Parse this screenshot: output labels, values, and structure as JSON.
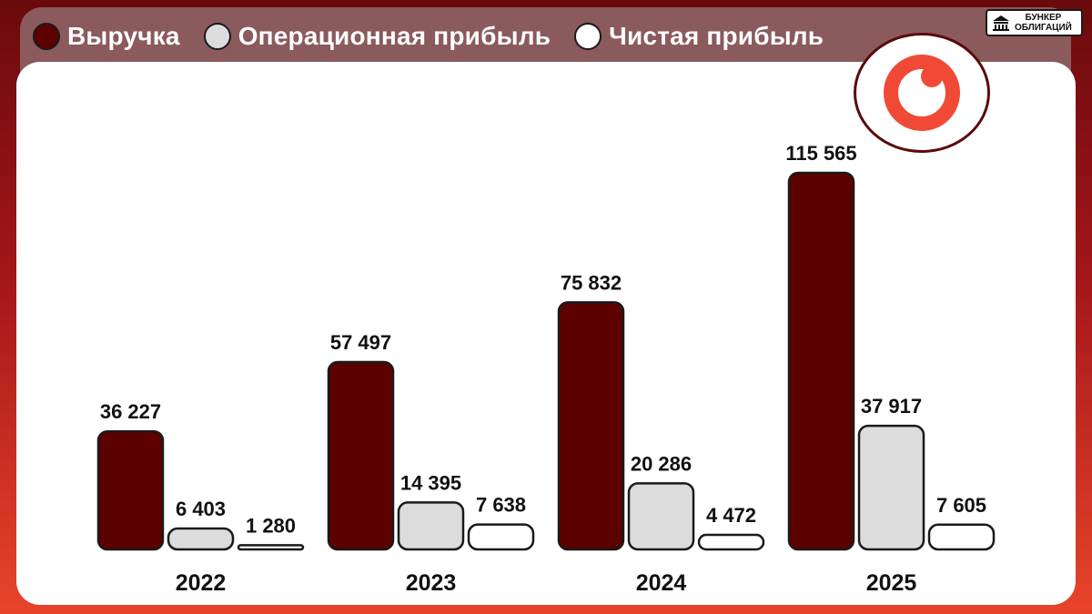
{
  "legend": {
    "items": [
      {
        "label": "Выручка",
        "color": "#5c0000"
      },
      {
        "label": "Операционная прибыль",
        "color": "#dcdcdc"
      },
      {
        "label": "Чистая прибыль",
        "color": "#ffffff"
      }
    ]
  },
  "brand": {
    "line1": "БУНКЕР",
    "line2": "ОБЛИГАЦИЙ",
    "icon": "building-icon"
  },
  "logo": {
    "icon": "ring-logo-icon",
    "color": "#f04a37"
  },
  "chart_data": {
    "type": "bar",
    "categories": [
      "2022",
      "2023",
      "2024",
      "2025"
    ],
    "series": [
      {
        "name": "Выручка",
        "values": [
          36227,
          57497,
          75832,
          115565
        ],
        "labels": [
          "36 227",
          "57 497",
          "75 832",
          "115 565"
        ],
        "color": "#5c0000"
      },
      {
        "name": "Операционная прибыль",
        "values": [
          6403,
          14395,
          20286,
          37917
        ],
        "labels": [
          "6 403",
          "14 395",
          "20 286",
          "37 917"
        ],
        "color": "#dcdcdc"
      },
      {
        "name": "Чистая прибыль",
        "values": [
          1280,
          7638,
          4472,
          7605
        ],
        "labels": [
          "1 280",
          "7 638",
          "4 472",
          "7 605"
        ],
        "color": "#ffffff"
      }
    ],
    "ylim": [
      0,
      115565
    ],
    "grid": false,
    "legend_position": "top-left"
  }
}
